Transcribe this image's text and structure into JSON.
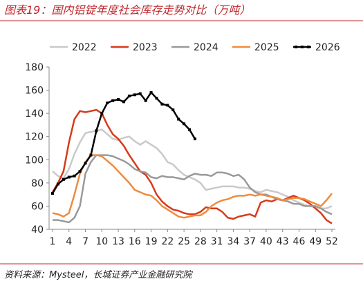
{
  "chart_data": {
    "type": "line",
    "title": "图表19：国内铝锭年度社会库存走势对比（万吨）",
    "source": "资料来源：Mysteel，长城证券产业金融研究院",
    "x": [
      1,
      2,
      3,
      4,
      5,
      6,
      7,
      8,
      9,
      10,
      11,
      12,
      13,
      14,
      15,
      16,
      17,
      18,
      19,
      20,
      21,
      22,
      23,
      24,
      25,
      26,
      27,
      28,
      29,
      30,
      31,
      32,
      33,
      34,
      35,
      36,
      37,
      38,
      39,
      40,
      41,
      42,
      43,
      44,
      45,
      46,
      47,
      48,
      49,
      50,
      51,
      52
    ],
    "xlim": [
      1,
      52
    ],
    "xticks": [
      1,
      4,
      7,
      10,
      13,
      16,
      19,
      22,
      25,
      28,
      31,
      34,
      37,
      40,
      43,
      46,
      49,
      52
    ],
    "ylim": [
      40,
      180
    ],
    "yticks": [
      40,
      60,
      80,
      100,
      120,
      140,
      160,
      180
    ],
    "series": [
      {
        "name": "2022",
        "color": "#c9c9c9",
        "values": [
          90,
          86,
          84,
          92,
          105,
          115,
          123,
          124,
          125,
          126,
          122,
          118,
          117,
          119,
          120,
          116,
          113,
          116,
          113,
          110,
          105,
          98,
          96,
          91,
          87,
          85,
          83,
          80,
          74,
          75,
          76,
          77,
          77,
          77,
          76,
          76,
          75,
          73,
          72,
          74,
          73,
          72,
          70,
          68,
          65,
          63,
          61,
          60,
          59,
          58,
          58,
          60
        ]
      },
      {
        "name": "2023",
        "color": "#d63a1a",
        "values": [
          72,
          80,
          90,
          115,
          135,
          142,
          141,
          142,
          143,
          140,
          130,
          122,
          118,
          112,
          104,
          97,
          90,
          87,
          80,
          70,
          64,
          60,
          57,
          56,
          54,
          53,
          53,
          55,
          59,
          58,
          58,
          55,
          50,
          49,
          51,
          52,
          53,
          51,
          63,
          65,
          64,
          66,
          65,
          67,
          69,
          67,
          65,
          62,
          58,
          54,
          48,
          45
        ]
      },
      {
        "name": "2024",
        "color": "#999999",
        "values": [
          48,
          48,
          47,
          46,
          50,
          60,
          88,
          98,
          104,
          104,
          104,
          103,
          101,
          99,
          96,
          92,
          90,
          89,
          85,
          84,
          86,
          85,
          85,
          84,
          83,
          86,
          88,
          87,
          87,
          86,
          89,
          89,
          88,
          86,
          87,
          83,
          76,
          72,
          70,
          70,
          68,
          66,
          65,
          64,
          62,
          62,
          60,
          60,
          60,
          58,
          55,
          53
        ]
      },
      {
        "name": "2025",
        "color": "#f08a3c",
        "values": [
          54,
          53,
          51,
          54,
          70,
          88,
          98,
          104,
          104,
          103,
          99,
          95,
          90,
          85,
          80,
          74,
          72,
          70,
          69,
          65,
          60,
          57,
          54,
          51,
          50,
          51,
          52,
          52,
          55,
          60,
          63,
          65,
          66,
          68,
          69,
          69,
          70,
          69,
          70,
          69,
          68,
          67,
          65,
          66,
          67,
          67,
          66,
          64,
          62,
          60,
          65,
          71
        ]
      },
      {
        "name": "2026",
        "color": "#000000",
        "markers": true,
        "values": [
          71,
          79,
          83,
          85,
          86,
          90,
          97,
          104,
          125,
          140,
          149,
          151,
          152,
          150,
          155,
          156,
          157,
          151,
          158,
          153,
          148,
          147,
          143,
          135,
          131,
          126,
          118,
          null,
          null,
          null,
          null,
          null,
          null,
          null,
          null,
          null,
          null,
          null,
          null,
          null,
          null,
          null,
          null,
          null,
          null,
          null,
          null,
          null,
          null,
          null,
          null,
          null
        ]
      }
    ]
  }
}
